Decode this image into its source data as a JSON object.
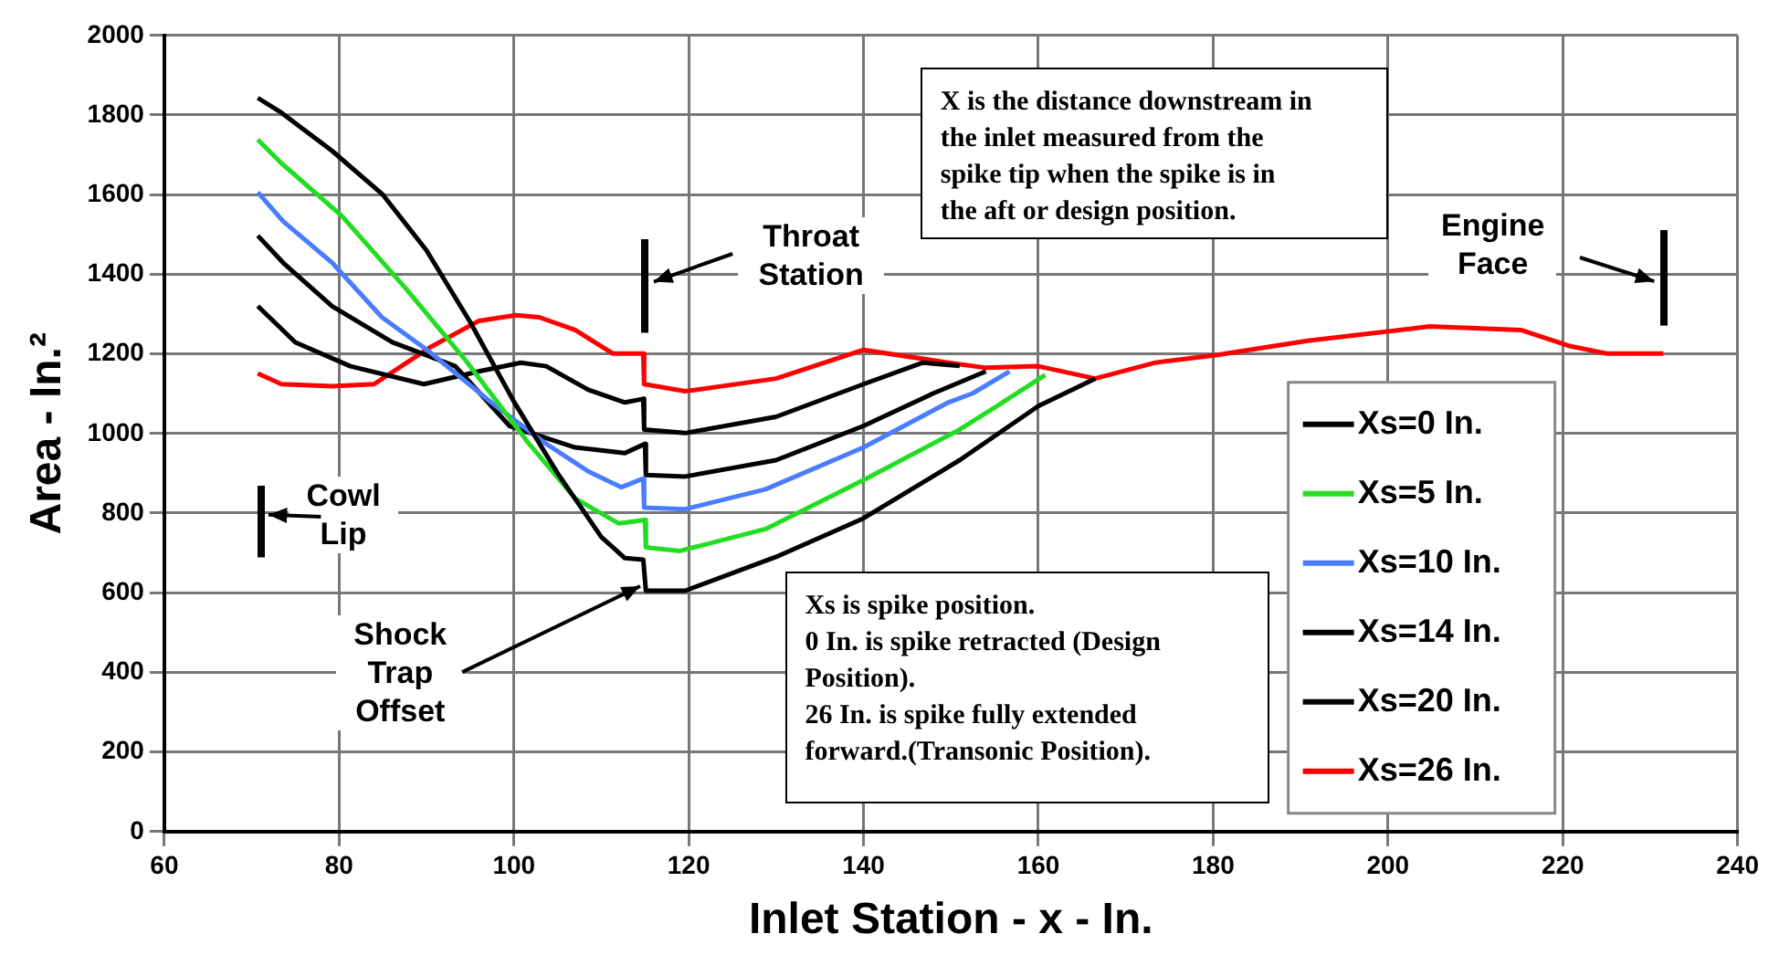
{
  "chart_data": {
    "type": "line",
    "xlabel": "Inlet Station - x - In.",
    "ylabel": "Area - In.²",
    "xlim": [
      60,
      240
    ],
    "xticks": [
      60,
      80,
      100,
      120,
      140,
      160,
      180,
      200,
      220,
      240
    ],
    "ylim": [
      0,
      2000
    ],
    "yticks": [
      0,
      200,
      400,
      600,
      800,
      1000,
      1200,
      1400,
      1600,
      1800,
      2000
    ],
    "grid": true,
    "legend": "bottom right",
    "marker": "none",
    "line_style": "solid",
    "series": [
      {
        "name": "Xs=0 In.",
        "color": "#000000",
        "x": [
          70.7,
          73.4,
          79.2,
          85,
          90,
          95,
          100,
          105,
          110,
          112.7,
          114.8,
          115.1,
          119.6,
          130,
          140,
          151,
          160,
          166.5
        ],
        "values": [
          1843,
          1806,
          1710,
          1600,
          1460,
          1280,
          1080,
          900,
          740,
          687,
          683,
          605,
          605,
          690,
          787,
          933,
          1069,
          1138
        ]
      },
      {
        "name": "Xs=5 In.",
        "color": "#22dd22",
        "x": [
          70.7,
          73.4,
          80.3,
          87.6,
          94.5,
          101.6,
          107,
          112,
          115,
          115.1,
          119,
          128.8,
          140,
          151,
          155,
          160.8
        ],
        "values": [
          1738,
          1679,
          1547,
          1365,
          1183,
          978,
          837,
          774,
          783,
          714,
          705,
          760,
          883,
          1010,
          1065,
          1147
        ]
      },
      {
        "name": "Xs=10 In.",
        "color": "#4a7cff",
        "x": [
          70.7,
          73.6,
          79.2,
          84.9,
          90.3,
          97.4,
          103.7,
          108.5,
          112.3,
          114.8,
          114.9,
          119.6,
          128.8,
          140,
          149.7,
          152.5,
          156.7
        ],
        "values": [
          1606,
          1533,
          1429,
          1292,
          1206,
          1078,
          974,
          905,
          865,
          887,
          814,
          810,
          860,
          965,
          1078,
          1101,
          1156
        ]
      },
      {
        "name": "Xs=14 In.",
        "color": "#000000",
        "x": [
          70.7,
          73.6,
          79.2,
          86.1,
          93.3,
          99.5,
          107,
          112.7,
          115,
          115.1,
          119.6,
          130,
          140,
          148,
          154
        ],
        "values": [
          1497,
          1429,
          1320,
          1229,
          1169,
          1019,
          965,
          951,
          974,
          896,
          892,
          933,
          1019,
          1101,
          1156
        ]
      },
      {
        "name": "Xs=20 In.",
        "color": "#000000",
        "x": [
          70.7,
          75,
          81.3,
          89.7,
          96,
          100.8,
          103.7,
          108.5,
          112.7,
          114.8,
          114.9,
          119.6,
          130,
          140,
          146.8,
          151
        ],
        "values": [
          1320,
          1229,
          1169,
          1124,
          1156,
          1178,
          1169,
          1110,
          1078,
          1087,
          1010,
          1001,
          1042,
          1124,
          1178,
          1170
        ]
      },
      {
        "name": "Xs=26 In.",
        "color": "#ff0000",
        "x": [
          70.7,
          73.4,
          79.2,
          84,
          90.3,
          96,
          100.2,
          102.9,
          107,
          111.3,
          114.8,
          114.9,
          119.6,
          130,
          140,
          149.7,
          154,
          160,
          166.5,
          173.4,
          180.3,
          190.8,
          204.8,
          215.2,
          220.9,
          225,
          231.5
        ],
        "values": [
          1151,
          1124,
          1119,
          1124,
          1215,
          1283,
          1297,
          1292,
          1260,
          1201,
          1201,
          1124,
          1106,
          1138,
          1210,
          1178,
          1165,
          1169,
          1138,
          1178,
          1197,
          1233,
          1269,
          1260,
          1219,
          1201,
          1201
        ]
      }
    ],
    "annotations": [
      "Cowl Lip",
      "Throat Station",
      "Engine Face",
      {
        "text": "Shock Trap Offset",
        "x": 115,
        "y": 630
      },
      "X is the distance downstream in\nthe inlet measured from the\nspike tip when the spike is in\nthe aft or design position.",
      "Xs is spike position.\n0 In. is spike retracted (Design\nPosition).\n26 In. is spike fully extended\nforward.(Transonic Position)."
    ]
  }
}
